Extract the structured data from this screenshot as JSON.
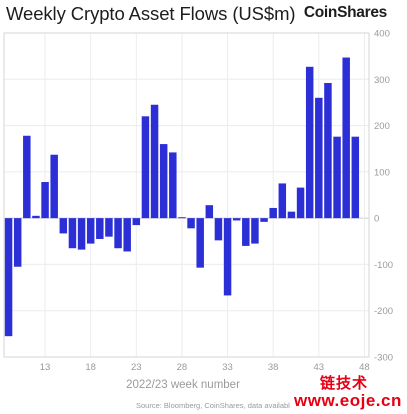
{
  "header": {
    "title": "Weekly Crypto Asset Flows (US$m)",
    "logo": "CoinShares"
  },
  "footer": {
    "source": "Source: Bloomberg, CoinShares, data available"
  },
  "watermark": {
    "top": "链技术",
    "bottom": "www.eoje.cn",
    "color": "#e60012"
  },
  "chart_data": {
    "type": "bar",
    "title": "Weekly Crypto Asset Flows (US$m)",
    "xlabel": "2022/23 week number",
    "ylabel": "",
    "ylim": [
      -300,
      400
    ],
    "yticks": [
      400,
      300,
      200,
      100,
      0,
      -100,
      -200,
      -300
    ],
    "xlim": [
      8.5,
      48.5
    ],
    "xticks": [
      13,
      18,
      23,
      28,
      33,
      38,
      43,
      48
    ],
    "grid": true,
    "bar_color": "#2c2fd6",
    "x": [
      9,
      10,
      11,
      12,
      13,
      14,
      15,
      16,
      17,
      18,
      19,
      20,
      21,
      22,
      23,
      24,
      25,
      26,
      27,
      28,
      29,
      30,
      31,
      32,
      33,
      34,
      35,
      36,
      37,
      38,
      39,
      40,
      41,
      42,
      43,
      44,
      45,
      46,
      47,
      48
    ],
    "values": [
      -255,
      -105,
      178,
      5,
      78,
      137,
      -33,
      -65,
      -68,
      -55,
      -45,
      -40,
      -65,
      -72,
      -15,
      220,
      245,
      160,
      142,
      2,
      -22,
      -107,
      28,
      -48,
      -167,
      -5,
      -60,
      -55,
      -8,
      22,
      75,
      14,
      66,
      327,
      260,
      292,
      176,
      347,
      176,
      0
    ]
  }
}
